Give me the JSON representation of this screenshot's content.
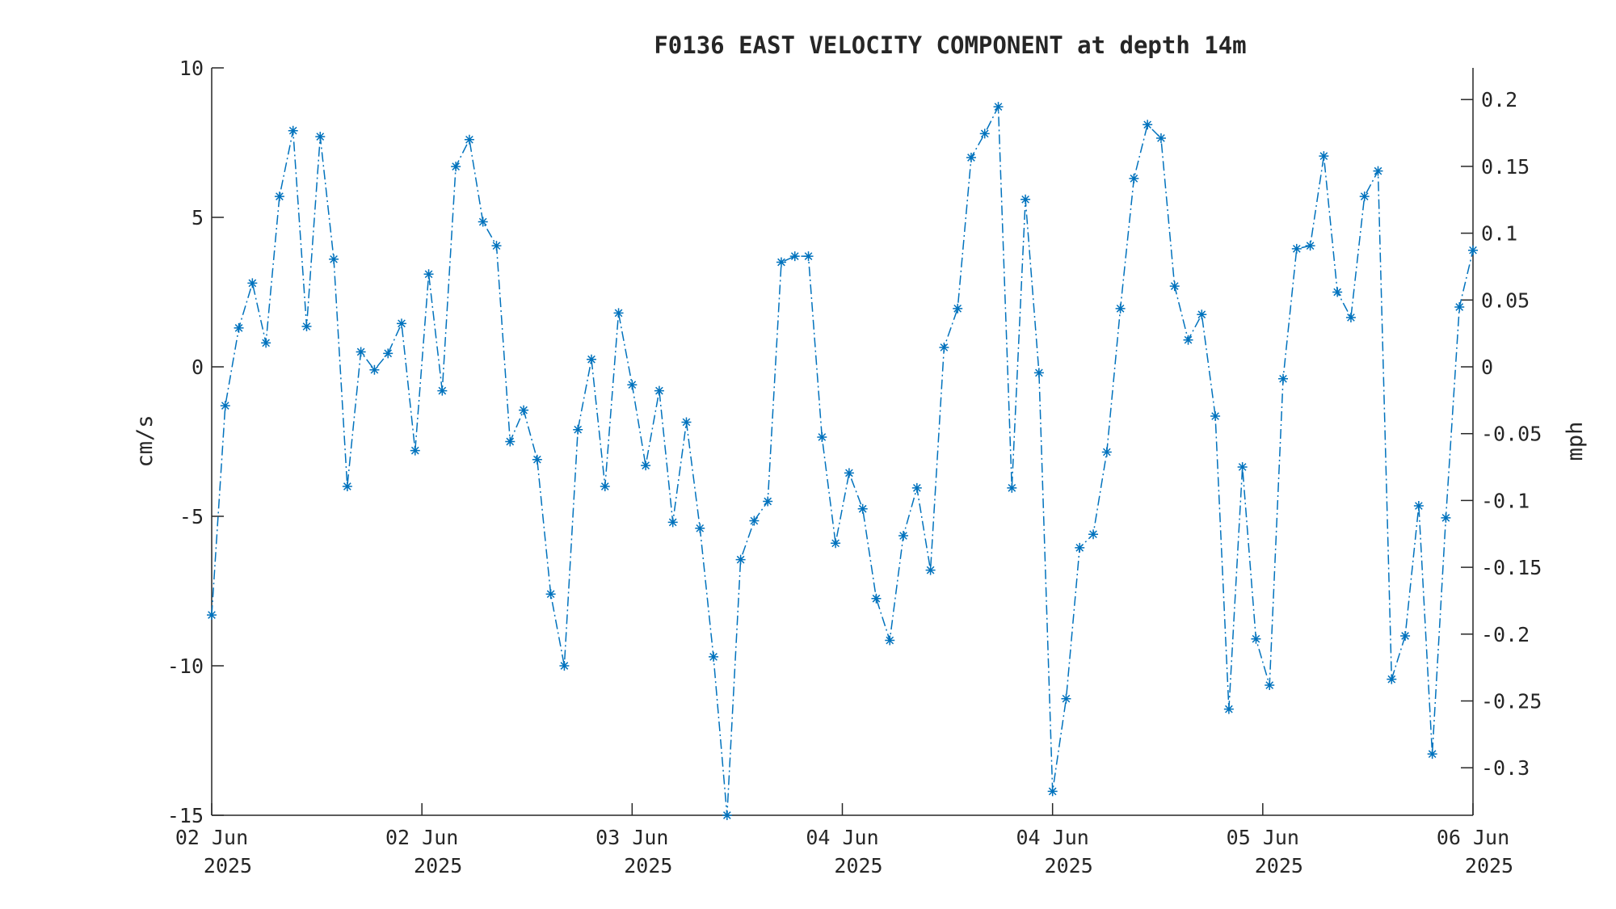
{
  "chart_data": {
    "type": "line",
    "title": "F0136 EAST VELOCITY COMPONENT at depth 14m",
    "ylabel": "cm/s",
    "ylabel_right": "mph",
    "ylim": [
      -15,
      10
    ],
    "y_ticks": [
      "10",
      "5",
      "0",
      "-5",
      "-10",
      "-15"
    ],
    "y_tick_values": [
      10,
      5,
      0,
      -5,
      -10,
      -15
    ],
    "y_right_ticks": [
      "0.2",
      "0.15",
      "0.1",
      "0.05",
      "0",
      "-0.05",
      "-0.1",
      "-0.15",
      "-0.2",
      "-0.25",
      "-0.3"
    ],
    "y_right_tick_values": [
      0.2,
      0.15,
      0.1,
      0.05,
      0,
      -0.05,
      -0.1,
      -0.15,
      -0.2,
      -0.25,
      -0.3
    ],
    "x_ticks": [
      {
        "line1": "02 Jun",
        "line2": "2025"
      },
      {
        "line1": "02 Jun",
        "line2": "2025"
      },
      {
        "line1": "03 Jun",
        "line2": "2025"
      },
      {
        "line1": "04 Jun",
        "line2": "2025"
      },
      {
        "line1": "04 Jun",
        "line2": "2025"
      },
      {
        "line1": "05 Jun",
        "line2": "2025"
      },
      {
        "line1": "06 Jun",
        "line2": "2025"
      }
    ],
    "grid": false,
    "line_style": "dash-dot",
    "marker": "asterisk",
    "color": "#0072bd",
    "series": [
      {
        "values": [
          -8.3,
          -1.3,
          1.3,
          2.8,
          0.8,
          5.7,
          7.9,
          1.35,
          7.7,
          3.6,
          -4.0,
          0.5,
          -0.1,
          0.45,
          1.45,
          -2.8,
          3.1,
          -0.8,
          6.7,
          7.6,
          4.85,
          4.05,
          -2.5,
          -1.45,
          -3.1,
          -7.6,
          -10.0,
          -2.1,
          0.25,
          -4.0,
          1.8,
          -0.6,
          -3.3,
          -0.8,
          -5.2,
          -1.85,
          -5.4,
          -9.7,
          -15.0,
          -6.45,
          -5.15,
          -4.5,
          3.5,
          3.7,
          3.7,
          -2.35,
          -5.9,
          -3.55,
          -4.75,
          -7.75,
          -9.15,
          -5.65,
          -4.05,
          -6.8,
          0.65,
          1.95,
          7.0,
          7.8,
          8.7,
          -4.05,
          5.6,
          -0.2,
          -14.2,
          -11.1,
          -6.05,
          -5.6,
          -2.85,
          1.95,
          6.3,
          8.1,
          7.65,
          2.7,
          0.9,
          1.75,
          -1.65,
          -11.45,
          -3.35,
          -9.1,
          -10.65,
          -0.4,
          3.95,
          4.05,
          7.05,
          2.5,
          1.65,
          5.7,
          6.55,
          -10.45,
          -9.0,
          -4.65,
          -12.95,
          -5.05,
          2.0,
          3.9
        ]
      }
    ]
  }
}
